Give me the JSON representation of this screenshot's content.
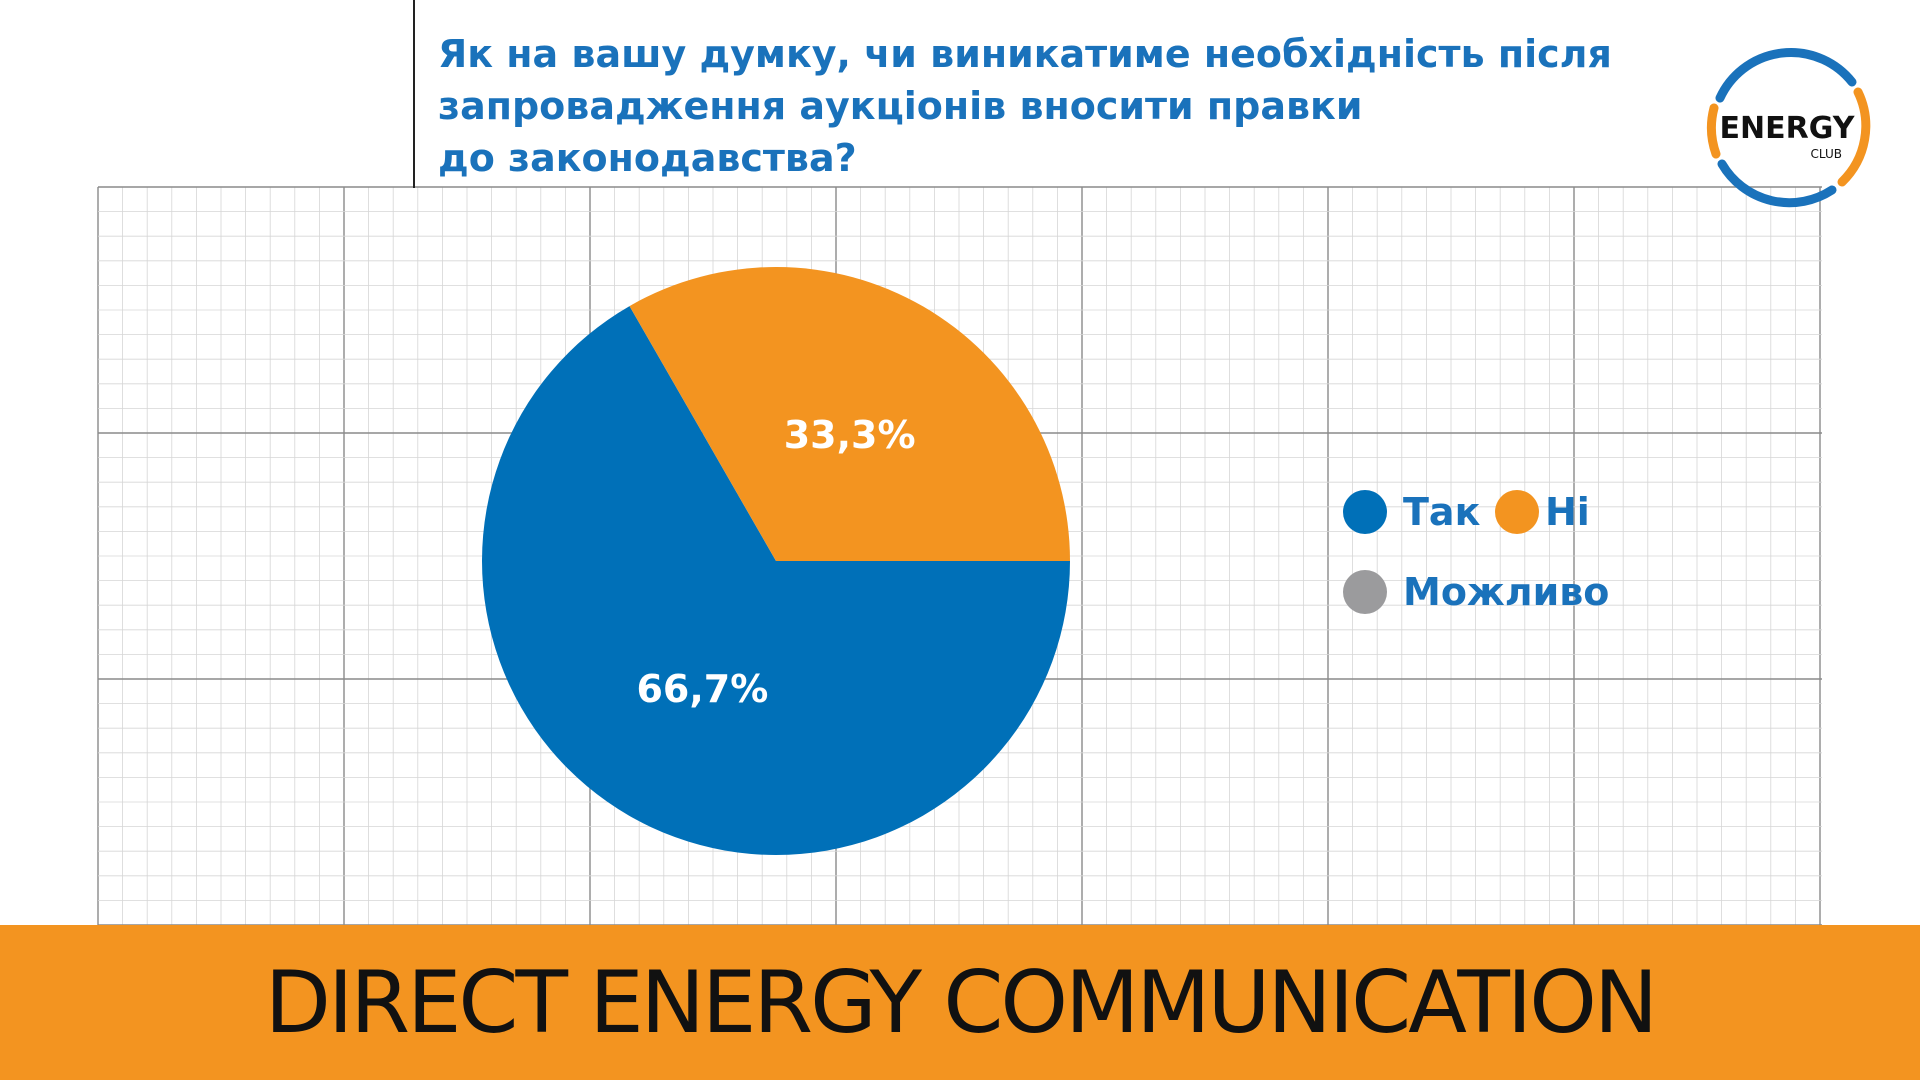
{
  "title_lines": [
    "Як на вашу думку, чи виникатиме необхідність після",
    "запровадження аукціонів вносити правки",
    "до законодавства?"
  ],
  "logo": {
    "text": "ENERGY",
    "subtext": "CLUB",
    "colors": {
      "blue": "#1a72bb",
      "orange": "#f39420"
    }
  },
  "chart_data": {
    "type": "pie",
    "title": "Як на вашу думку, чи виникатиме необхідність після запровадження аукціонів вносити правки до законодавства?",
    "categories": [
      "Так",
      "Ні",
      "Можливо"
    ],
    "values": [
      66.7,
      33.3,
      0
    ],
    "data_labels": [
      "66,7%",
      "33,3%",
      ""
    ],
    "colors": [
      "#0070b8",
      "#f39420",
      "#9b9b9d"
    ],
    "legend_position": "right"
  },
  "footer": {
    "text": "DIRECT ENERGY COMMUNICATION",
    "color": "#f39420"
  }
}
